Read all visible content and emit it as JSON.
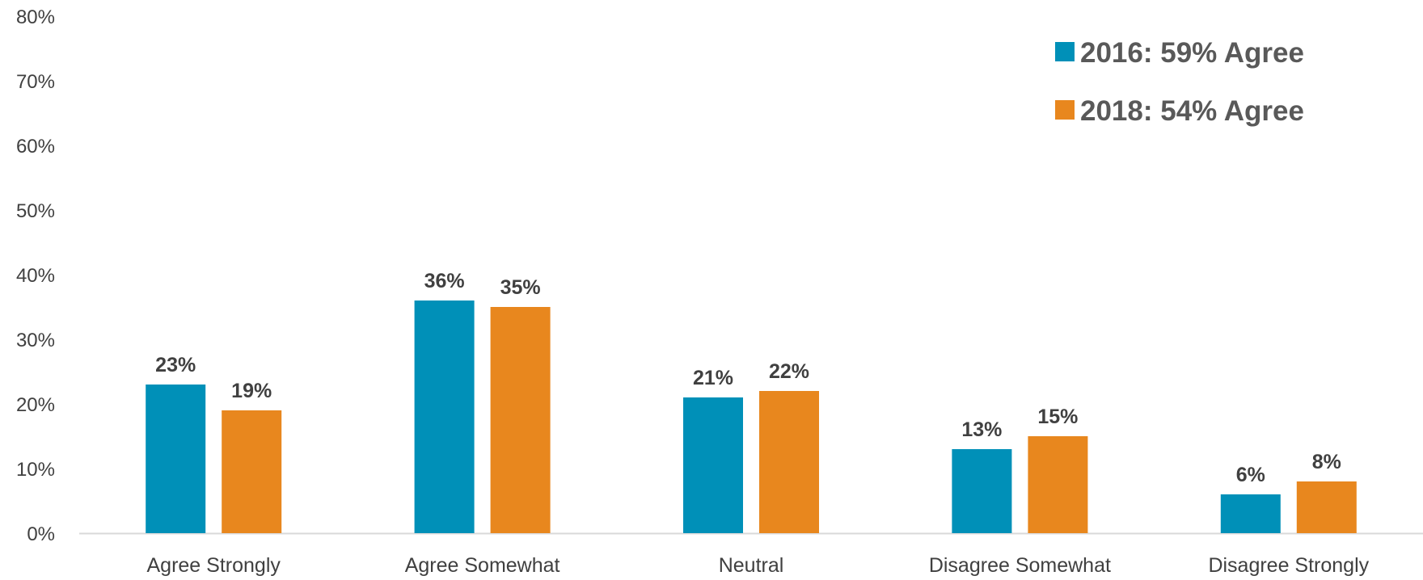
{
  "chart_data": {
    "type": "bar",
    "categories": [
      "Agree Strongly",
      "Agree Somewhat",
      "Neutral",
      "Disagree Somewhat",
      "Disagree Strongly"
    ],
    "series": [
      {
        "name": "2016: 59% Agree",
        "color": "#0090B8",
        "values": [
          23,
          36,
          21,
          13,
          6
        ],
        "labels": [
          "23%",
          "36%",
          "21%",
          "13%",
          "6%"
        ]
      },
      {
        "name": "2018: 54% Agree",
        "color": "#E8871E",
        "values": [
          19,
          35,
          22,
          15,
          8
        ],
        "labels": [
          "19%",
          "35%",
          "22%",
          "15%",
          "8%"
        ]
      }
    ],
    "ylim": [
      0,
      80
    ],
    "yticks": [
      0,
      10,
      20,
      30,
      40,
      50,
      60,
      70,
      80
    ],
    "ytick_labels": [
      "0%",
      "10%",
      "20%",
      "30%",
      "40%",
      "50%",
      "60%",
      "70%",
      "80%"
    ],
    "grid": false,
    "legend": "top-right",
    "title": "",
    "xlabel": "",
    "ylabel": "",
    "axis_color": "#D9D9D9"
  }
}
